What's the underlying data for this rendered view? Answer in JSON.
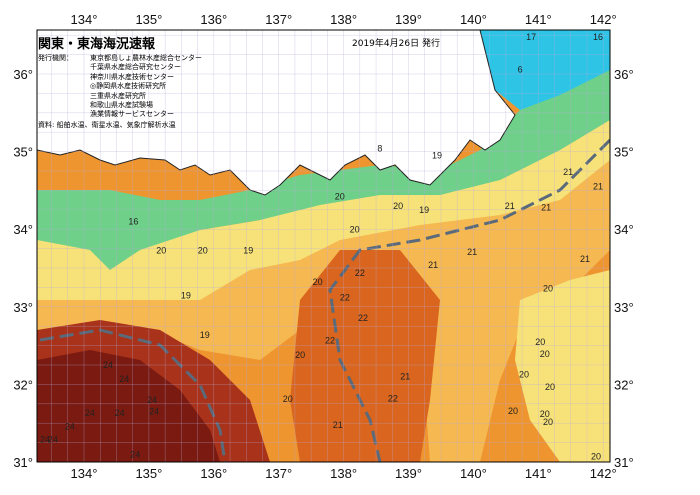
{
  "title": "関東・東海海況速報",
  "issue_date": "2019年4月26日 発行",
  "issuers_label": "発行機関：",
  "issuers": [
    "東京都島しょ農林水産総合センター",
    "千葉県水産総合研究センター",
    "神奈川県水産技術センター",
    "◎静岡県水産技術研究所",
    "三重県水産研究所",
    "和歌山県水産試験場",
    "漁業情報サービスセンター"
  ],
  "source": "資料: 船舶水温、衛星水温、気象庁解析水温",
  "lon_ticks": [
    "134°",
    "135°",
    "136°",
    "137°",
    "138°",
    "139°",
    "140°",
    "141°",
    "142°"
  ],
  "lat_ticks": [
    "31°",
    "32°",
    "33°",
    "34°",
    "35°",
    "36°"
  ],
  "colors": {
    "land": "#ffffff",
    "cold": "#2ec4e6",
    "green": "#6fd08a",
    "yellow": "#f7e27a",
    "lightorange": "#f6b850",
    "orange": "#ee9530",
    "darkorange": "#d9651e",
    "red": "#a8321a",
    "darkred": "#7a1a10",
    "grid": "#b9a9d9",
    "current_axis": "#5a6a7a"
  },
  "contour_labels": [
    {
      "t": "17",
      "lon": 140.89,
      "lat": 36.44
    },
    {
      "t": "16",
      "lon": 141.92,
      "lat": 36.44
    },
    {
      "t": "6",
      "lon": 140.72,
      "lat": 36.02
    },
    {
      "t": "8",
      "lon": 138.56,
      "lat": 35.0
    },
    {
      "t": "19",
      "lon": 139.44,
      "lat": 34.91
    },
    {
      "t": "21",
      "lon": 141.46,
      "lat": 34.7
    },
    {
      "t": "21",
      "lon": 141.92,
      "lat": 34.51
    },
    {
      "t": "20",
      "lon": 138.84,
      "lat": 34.26
    },
    {
      "t": "19",
      "lon": 139.24,
      "lat": 34.21
    },
    {
      "t": "20",
      "lon": 137.94,
      "lat": 34.38
    },
    {
      "t": "21",
      "lon": 140.56,
      "lat": 34.26
    },
    {
      "t": "21",
      "lon": 141.12,
      "lat": 34.24
    },
    {
      "t": "16",
      "lon": 134.76,
      "lat": 34.06
    },
    {
      "t": "20",
      "lon": 138.17,
      "lat": 33.96
    },
    {
      "t": "20",
      "lon": 135.19,
      "lat": 33.69
    },
    {
      "t": "20",
      "lon": 135.83,
      "lat": 33.69
    },
    {
      "t": "19",
      "lon": 136.53,
      "lat": 33.69
    },
    {
      "t": "21",
      "lon": 139.38,
      "lat": 33.5
    },
    {
      "t": "21",
      "lon": 139.98,
      "lat": 33.67
    },
    {
      "t": "21",
      "lon": 141.72,
      "lat": 33.58
    },
    {
      "t": "22",
      "lon": 138.25,
      "lat": 33.4
    },
    {
      "t": "20",
      "lon": 137.6,
      "lat": 33.28
    },
    {
      "t": "22",
      "lon": 138.02,
      "lat": 33.08
    },
    {
      "t": "19",
      "lon": 135.57,
      "lat": 33.11
    },
    {
      "t": "20",
      "lon": 141.15,
      "lat": 33.2
    },
    {
      "t": "22",
      "lon": 138.3,
      "lat": 32.82
    },
    {
      "t": "19",
      "lon": 135.86,
      "lat": 32.6
    },
    {
      "t": "22",
      "lon": 137.79,
      "lat": 32.53
    },
    {
      "t": "20",
      "lon": 141.03,
      "lat": 32.51
    },
    {
      "t": "20",
      "lon": 137.33,
      "lat": 32.34
    },
    {
      "t": "24",
      "lon": 134.37,
      "lat": 32.21
    },
    {
      "t": "20",
      "lon": 141.1,
      "lat": 32.35
    },
    {
      "t": "21",
      "lon": 138.95,
      "lat": 32.06
    },
    {
      "t": "24",
      "lon": 134.62,
      "lat": 32.03
    },
    {
      "t": "20",
      "lon": 140.78,
      "lat": 32.09
    },
    {
      "t": "20",
      "lon": 141.18,
      "lat": 31.93
    },
    {
      "t": "20",
      "lon": 137.14,
      "lat": 31.77
    },
    {
      "t": "22",
      "lon": 138.76,
      "lat": 31.78
    },
    {
      "t": "24",
      "lon": 135.05,
      "lat": 31.76
    },
    {
      "t": "24",
      "lon": 134.09,
      "lat": 31.59
    },
    {
      "t": "24",
      "lon": 134.55,
      "lat": 31.59
    },
    {
      "t": "24",
      "lon": 135.08,
      "lat": 31.61
    },
    {
      "t": "24",
      "lon": 133.78,
      "lat": 31.42
    },
    {
      "t": "20",
      "lon": 140.61,
      "lat": 31.62
    },
    {
      "t": "20",
      "lon": 141.1,
      "lat": 31.58
    },
    {
      "t": "21",
      "lon": 137.91,
      "lat": 31.44
    },
    {
      "t": "24",
      "lon": 133.52,
      "lat": 31.25
    },
    {
      "t": "20",
      "lon": 141.15,
      "lat": 31.48
    },
    {
      "t": "24",
      "lon": 134.79,
      "lat": 31.06
    },
    {
      "t": "20",
      "lon": 141.89,
      "lat": 31.03
    },
    {
      "t": "24",
      "lon": 133.4,
      "lat": 31.25
    }
  ]
}
